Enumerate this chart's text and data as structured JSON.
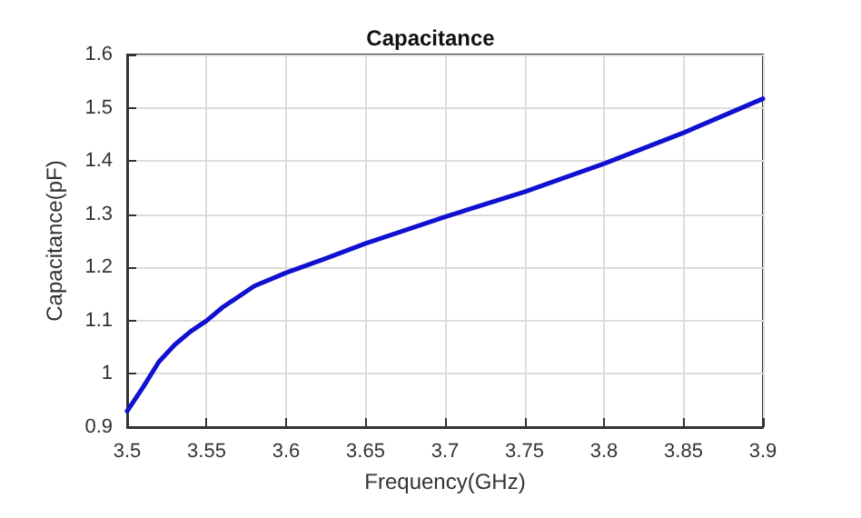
{
  "chart_data": {
    "type": "line",
    "title": "Capacitance",
    "xlabel": "Frequency(GHz)",
    "ylabel": "Capacitance(pF)",
    "x": [
      3.5,
      3.51,
      3.52,
      3.53,
      3.54,
      3.55,
      3.56,
      3.58,
      3.6,
      3.625,
      3.65,
      3.7,
      3.75,
      3.8,
      3.85,
      3.9
    ],
    "series": [
      {
        "color": "#1010d0",
        "values": [
          0.93,
          0.975,
          1.023,
          1.055,
          1.08,
          1.1,
          1.125,
          1.165,
          1.19,
          1.217,
          1.245,
          1.295,
          1.342,
          1.395,
          1.453,
          1.517
        ]
      }
    ],
    "xlim": [
      3.5,
      3.9
    ],
    "xticks": [
      3.5,
      3.55,
      3.6,
      3.65,
      3.7,
      3.75,
      3.8,
      3.85,
      3.9
    ],
    "ylim": [
      0.9,
      1.6
    ],
    "yticks": [
      0.9,
      1,
      1.1,
      1.2,
      1.3,
      1.4,
      1.5,
      1.6
    ],
    "grid": true,
    "marker": "none",
    "line_style": "solid"
  }
}
